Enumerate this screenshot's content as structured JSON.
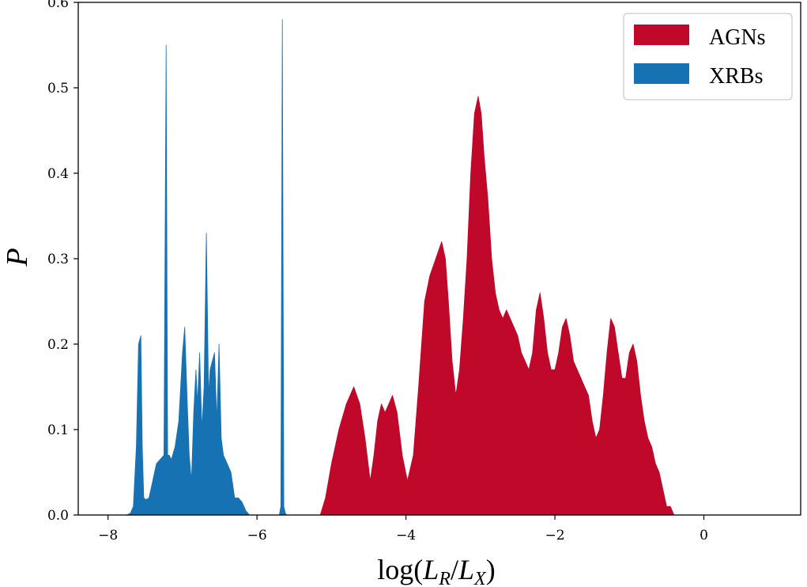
{
  "chart_data": {
    "type": "area",
    "xlabel_parts": [
      "log(",
      "L",
      "R",
      "/",
      "L",
      "X",
      ")"
    ],
    "ylabel": "P",
    "xlim": [
      -8.4,
      1.3
    ],
    "ylim": [
      0.0,
      0.6
    ],
    "xticks": [
      -8,
      -6,
      -4,
      -2,
      0
    ],
    "xtick_labels": [
      "−8",
      "−6",
      "−4",
      "−2",
      "0"
    ],
    "yticks": [
      0.0,
      0.1,
      0.2,
      0.3,
      0.4,
      0.5,
      0.6
    ],
    "ytick_labels": [
      "0.0",
      "0.1",
      "0.2",
      "0.3",
      "0.4",
      "0.5",
      "0.6"
    ],
    "grid": false,
    "legend_position": "top-right",
    "series": [
      {
        "name": "AGNs",
        "color": "#c0092a",
        "x": [
          -5.15,
          -5.08,
          -5.0,
          -4.9,
          -4.8,
          -4.7,
          -4.62,
          -4.55,
          -4.48,
          -4.43,
          -4.38,
          -4.33,
          -4.28,
          -4.23,
          -4.18,
          -4.12,
          -4.05,
          -3.98,
          -3.9,
          -3.83,
          -3.75,
          -3.68,
          -3.6,
          -3.52,
          -3.47,
          -3.43,
          -3.38,
          -3.33,
          -3.28,
          -3.23,
          -3.18,
          -3.13,
          -3.08,
          -3.03,
          -2.99,
          -2.95,
          -2.9,
          -2.85,
          -2.8,
          -2.75,
          -2.7,
          -2.65,
          -2.6,
          -2.55,
          -2.5,
          -2.45,
          -2.4,
          -2.35,
          -2.3,
          -2.25,
          -2.2,
          -2.15,
          -2.1,
          -2.05,
          -2.0,
          -1.95,
          -1.9,
          -1.85,
          -1.8,
          -1.75,
          -1.7,
          -1.65,
          -1.6,
          -1.55,
          -1.5,
          -1.45,
          -1.4,
          -1.35,
          -1.3,
          -1.25,
          -1.2,
          -1.15,
          -1.1,
          -1.05,
          -1.0,
          -0.95,
          -0.9,
          -0.85,
          -0.8,
          -0.75,
          -0.7,
          -0.65,
          -0.6,
          -0.55,
          -0.5,
          -0.45,
          -0.4,
          -0.35,
          -0.3,
          -0.25,
          -0.2,
          -0.15,
          -0.1,
          -0.05,
          0.0,
          0.05,
          0.1,
          0.15,
          0.2,
          0.25
        ],
        "y": [
          0.0,
          0.02,
          0.06,
          0.1,
          0.13,
          0.15,
          0.13,
          0.09,
          0.04,
          0.07,
          0.11,
          0.13,
          0.12,
          0.13,
          0.14,
          0.12,
          0.07,
          0.04,
          0.07,
          0.15,
          0.25,
          0.28,
          0.3,
          0.32,
          0.3,
          0.25,
          0.18,
          0.14,
          0.17,
          0.23,
          0.3,
          0.4,
          0.47,
          0.49,
          0.47,
          0.42,
          0.37,
          0.3,
          0.26,
          0.24,
          0.23,
          0.24,
          0.23,
          0.22,
          0.21,
          0.19,
          0.18,
          0.17,
          0.19,
          0.24,
          0.26,
          0.23,
          0.19,
          0.17,
          0.17,
          0.19,
          0.22,
          0.23,
          0.21,
          0.18,
          0.17,
          0.16,
          0.15,
          0.14,
          0.11,
          0.09,
          0.1,
          0.14,
          0.19,
          0.23,
          0.22,
          0.19,
          0.16,
          0.16,
          0.19,
          0.2,
          0.18,
          0.14,
          0.11,
          0.09,
          0.08,
          0.06,
          0.05,
          0.03,
          0.01,
          0.01,
          0.0,
          0.0,
          0.0,
          0.0,
          0.0,
          0.0,
          0.0,
          0.0,
          0.0,
          0.0,
          0.0,
          0.0,
          0.0,
          0.0
        ]
      },
      {
        "name": "XRBs",
        "color": "#1772b4",
        "x": [
          -7.75,
          -7.7,
          -7.66,
          -7.62,
          -7.59,
          -7.56,
          -7.54,
          -7.52,
          -7.49,
          -7.45,
          -7.4,
          -7.35,
          -7.3,
          -7.25,
          -7.22,
          -7.2,
          -7.18,
          -7.15,
          -7.1,
          -7.05,
          -7.0,
          -6.97,
          -6.94,
          -6.91,
          -6.88,
          -6.85,
          -6.82,
          -6.8,
          -6.77,
          -6.74,
          -6.71,
          -6.68,
          -6.65,
          -6.63,
          -6.6,
          -6.57,
          -6.54,
          -6.51,
          -6.48,
          -6.45,
          -6.4,
          -6.35,
          -6.3,
          -6.25,
          -6.2,
          -6.15,
          -6.1,
          -6.08,
          -6.06,
          -5.7,
          -5.68,
          -5.66,
          -5.64,
          -5.62,
          -5.6,
          -5.58
        ],
        "y": [
          0.0,
          0.002,
          0.01,
          0.08,
          0.2,
          0.21,
          0.08,
          0.02,
          0.018,
          0.02,
          0.04,
          0.06,
          0.065,
          0.07,
          0.55,
          0.07,
          0.07,
          0.065,
          0.08,
          0.11,
          0.19,
          0.22,
          0.14,
          0.07,
          0.04,
          0.12,
          0.17,
          0.13,
          0.19,
          0.1,
          0.15,
          0.33,
          0.14,
          0.17,
          0.18,
          0.19,
          0.11,
          0.2,
          0.09,
          0.07,
          0.06,
          0.05,
          0.02,
          0.02,
          0.015,
          0.005,
          0.0,
          0.0,
          0.0,
          0.0,
          0.01,
          0.58,
          0.01,
          0.002,
          0.0,
          0.0
        ]
      }
    ]
  }
}
